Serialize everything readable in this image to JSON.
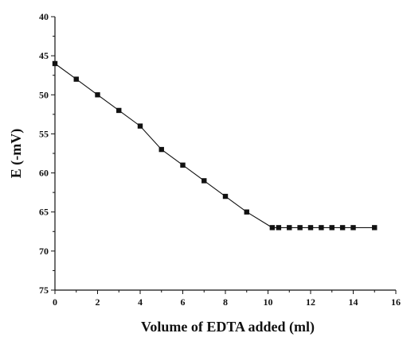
{
  "chart_data": {
    "type": "line",
    "title": "",
    "xlabel": "Volume of EDTA added (ml)",
    "ylabel": "E (-mV)",
    "xlim": [
      0,
      16
    ],
    "ylim": [
      75,
      40
    ],
    "y_axis_inverted": true,
    "grid": false,
    "legend": "none",
    "x_ticks": [
      0,
      2,
      4,
      6,
      8,
      10,
      12,
      14,
      16
    ],
    "y_ticks": [
      40,
      45,
      50,
      55,
      60,
      65,
      70,
      75
    ],
    "x_tick_labels": [
      "0",
      "2",
      "4",
      "6",
      "8",
      "10",
      "12",
      "14",
      "16"
    ],
    "y_tick_labels": [
      "40",
      "45",
      "50",
      "55",
      "60",
      "65",
      "70",
      "75"
    ],
    "marker": "square",
    "line_color": "#111111",
    "series": [
      {
        "x": [
          0,
          1,
          2,
          3,
          4,
          5,
          6,
          7,
          8,
          9,
          10.2,
          10.5,
          11,
          11.5,
          12,
          12.5,
          13,
          13.5,
          14,
          15
        ],
        "y": [
          46,
          48,
          50,
          52,
          54,
          57,
          59,
          61,
          63,
          65,
          67,
          67,
          67,
          67,
          67,
          67,
          67,
          67,
          67,
          67
        ]
      }
    ]
  }
}
